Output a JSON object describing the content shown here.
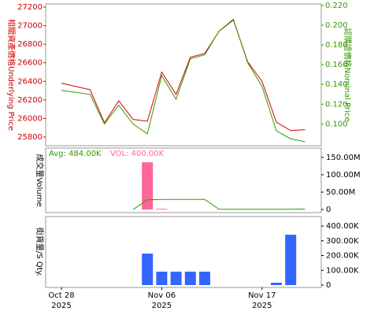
{
  "chart_data": [
    {
      "type": "line",
      "ylabel": "相關資產價格Underlying Price",
      "y2label": "認購證價格Nominal Price",
      "series": [
        {
          "color": "#cc0000",
          "values": [
            26380,
            26345,
            26310,
            25953,
            26190,
            25990,
            25970,
            26500,
            26260,
            26660,
            26700,
            26940,
            27060,
            26610,
            26400,
            25960,
            25870,
            25880
          ]
        },
        {
          "color": "#339900",
          "axis": "y2",
          "values": [
            0.134,
            0.132,
            0.13,
            0.1,
            0.119,
            0.1,
            0.09,
            0.149,
            0.125,
            0.166,
            0.17,
            0.194,
            0.206,
            0.162,
            0.138,
            0.093,
            0.085,
            0.082
          ]
        }
      ],
      "ylim": [
        25707,
        27234
      ],
      "yticks": [
        25800,
        26000,
        26200,
        26400,
        26600,
        26800,
        27000,
        27200
      ],
      "y2lim": [
        0.078,
        0.2215
      ],
      "y2ticks": [
        {
          "value": 0.1,
          "label": "0.100"
        },
        {
          "value": 0.12,
          "label": "0.120"
        },
        {
          "value": 0.14,
          "label": "0.140"
        },
        {
          "value": 0.16,
          "label": "0.160"
        },
        {
          "value": 0.18,
          "label": "0.180"
        },
        {
          "value": 0.2,
          "label": "0.200"
        },
        {
          "value": 0.22,
          "label": "0.220"
        }
      ]
    },
    {
      "type": "bar",
      "ylabel": "成交量Volume",
      "annotations": [
        {
          "text": "Avg: 484.00K",
          "color": "#339900"
        },
        {
          "text": "VOL: 400.00K",
          "color": "#ff6699"
        }
      ],
      "series": [
        {
          "color": "#ff6699",
          "values": [
            null,
            null,
            null,
            null,
            null,
            null,
            136000000,
            2000000,
            null,
            null,
            null,
            null,
            null,
            null,
            null,
            null,
            null,
            null
          ]
        },
        {
          "type": "line",
          "color": "#339900",
          "values": [
            null,
            null,
            null,
            null,
            null,
            0,
            28000000,
            29000000,
            29000000,
            29000000,
            29000000,
            500000,
            500000,
            500000,
            500000,
            500000,
            500000,
            1500000
          ]
        }
      ],
      "ylim": [
        -9000000,
        177000000
      ],
      "yticks": [
        0,
        {
          "value": 50000000,
          "label": "50.00M"
        },
        {
          "value": 100000000,
          "label": "100.00M"
        },
        {
          "value": 150000000,
          "label": "150.00M"
        }
      ]
    },
    {
      "type": "bar",
      "ylabel": "街貨量/S Qty.",
      "categories": [
        "Oct 28\n2025",
        null,
        null,
        null,
        null,
        null,
        null,
        "Nov 06\n2025",
        null,
        null,
        null,
        null,
        null,
        null,
        "Nov 17\n2025",
        null,
        null,
        null
      ],
      "series": [
        {
          "color": "#3366ff",
          "values": [
            null,
            null,
            null,
            null,
            null,
            null,
            213000,
            91000,
            91000,
            91000,
            91000,
            null,
            null,
            null,
            null,
            16000,
            341000,
            null
          ]
        }
      ],
      "ylim": [
        -16000,
        464000
      ],
      "yticks": [
        0,
        {
          "value": 100000,
          "label": "100.00K"
        },
        {
          "value": 200000,
          "label": "200.00K"
        },
        {
          "value": 300000,
          "label": "300.00K"
        },
        {
          "value": 400000,
          "label": "400.00K"
        }
      ]
    }
  ]
}
